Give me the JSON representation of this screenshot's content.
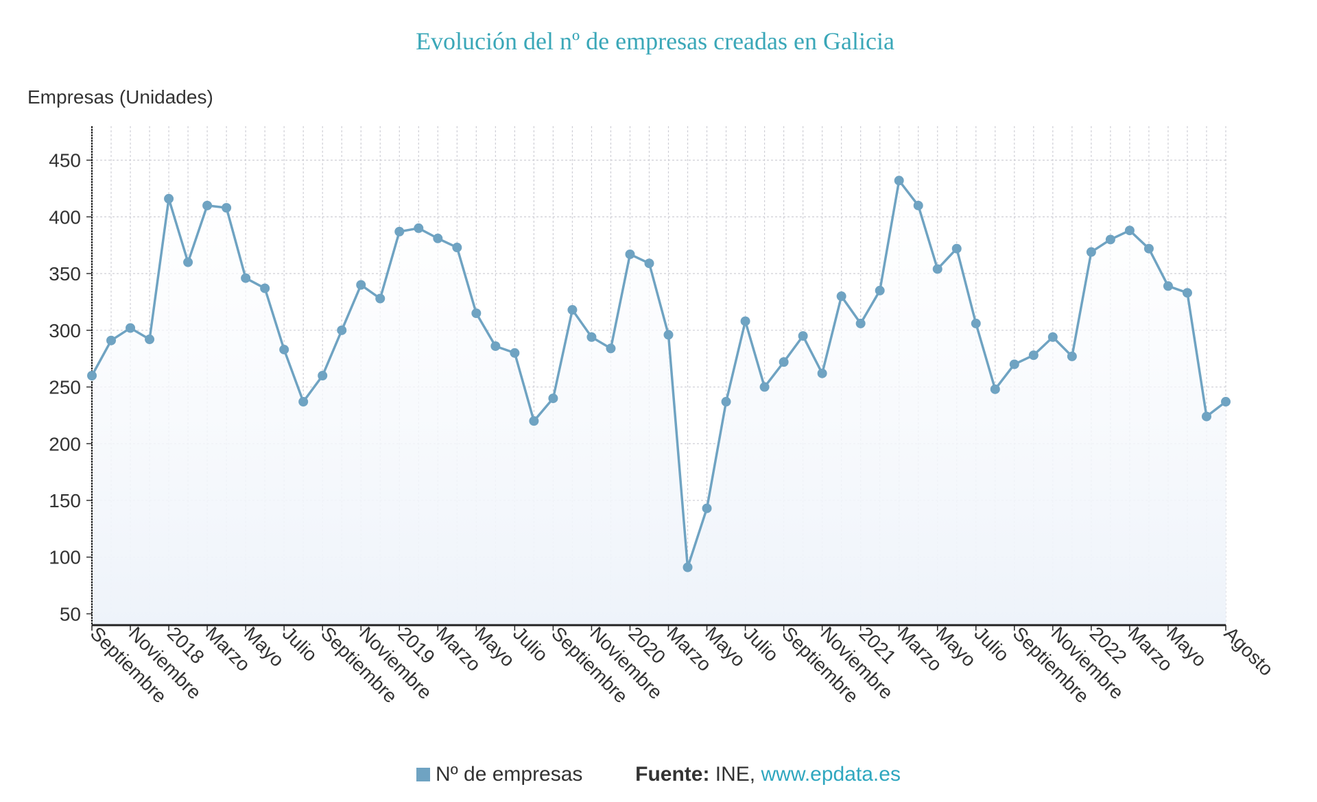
{
  "colors": {
    "title": "#3aa7b8",
    "series": "#6fa3c2",
    "link": "#2fa7bf",
    "area": "#eef3fa"
  },
  "footer": {
    "source_label": "Fuente:",
    "source": "INE,",
    "link": "www.epdata.es"
  },
  "chart_data": {
    "type": "line",
    "title": "Evolución del nº de empresas creadas en Galicia",
    "ylabel": "Empresas (Unidades)",
    "xlabel": "",
    "ylim": [
      40,
      480
    ],
    "yticks": [
      50,
      100,
      150,
      200,
      250,
      300,
      350,
      400,
      450
    ],
    "grid": true,
    "legend_position": "bottom",
    "x_start": "Septiembre 2017",
    "x_end": "Agosto 2022",
    "x_tick_labels": [
      "Septiembre",
      "Noviembre",
      "2018",
      "Marzo",
      "Mayo",
      "Julio",
      "Septiembre",
      "Noviembre",
      "2019",
      "Marzo",
      "Mayo",
      "Julio",
      "Septiembre",
      "Noviembre",
      "2020",
      "Marzo",
      "Mayo",
      "Julio",
      "Septiembre",
      "Noviembre",
      "2021",
      "Marzo",
      "Mayo",
      "Julio",
      "Septiembre",
      "Noviembre",
      "2022",
      "Marzo",
      "Mayo",
      "Agosto"
    ],
    "series": [
      {
        "name": "Nº de empresas",
        "values": [
          260,
          291,
          302,
          292,
          416,
          360,
          410,
          408,
          346,
          337,
          283,
          237,
          260,
          300,
          340,
          328,
          387,
          390,
          381,
          373,
          315,
          286,
          280,
          220,
          240,
          318,
          294,
          284,
          367,
          359,
          296,
          91,
          143,
          237,
          308,
          250,
          272,
          295,
          262,
          330,
          306,
          335,
          432,
          410,
          354,
          372,
          306,
          248,
          270,
          278,
          294,
          277,
          369,
          380,
          388,
          372,
          339,
          333,
          224,
          237
        ]
      }
    ]
  }
}
